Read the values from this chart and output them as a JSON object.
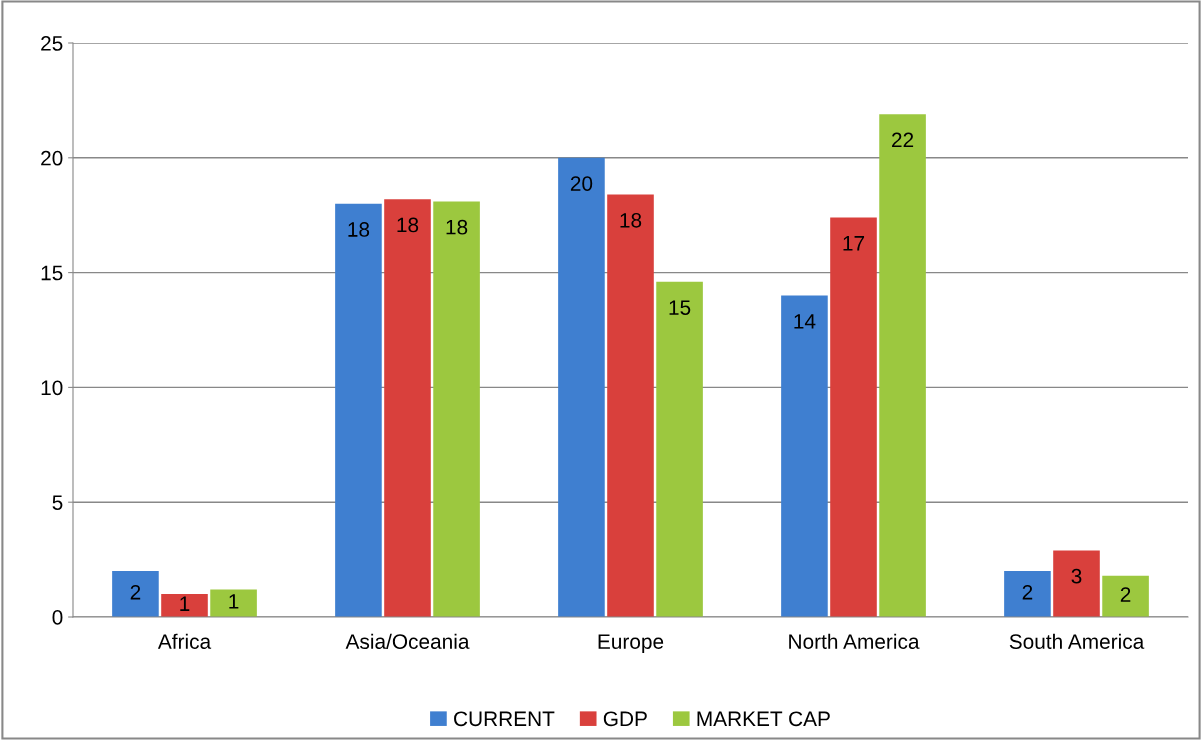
{
  "chart_data": {
    "type": "bar",
    "categories": [
      "Africa",
      "Asia/Oceania",
      "Europe",
      "North America",
      "South America"
    ],
    "series": [
      {
        "name": "CURRENT",
        "color": "#3f7fd0",
        "values": [
          2.0,
          18.0,
          20.0,
          14.0,
          2.0
        ],
        "value_labels": [
          "2",
          "18",
          "20",
          "14",
          "2"
        ]
      },
      {
        "name": "GDP",
        "color": "#d9403c",
        "values": [
          1.0,
          18.2,
          18.4,
          17.4,
          2.9
        ],
        "value_labels": [
          "1",
          "18",
          "18",
          "17",
          "3"
        ]
      },
      {
        "name": "MARKET CAP",
        "color": "#9cc83f",
        "values": [
          1.2,
          18.1,
          14.6,
          21.9,
          1.8
        ],
        "value_labels": [
          "1",
          "18",
          "15",
          "22",
          "2"
        ]
      }
    ],
    "ylim": [
      0,
      25
    ],
    "yticks": [
      0,
      5,
      10,
      15,
      20,
      25
    ],
    "grid": "y",
    "legend": "bottom"
  }
}
